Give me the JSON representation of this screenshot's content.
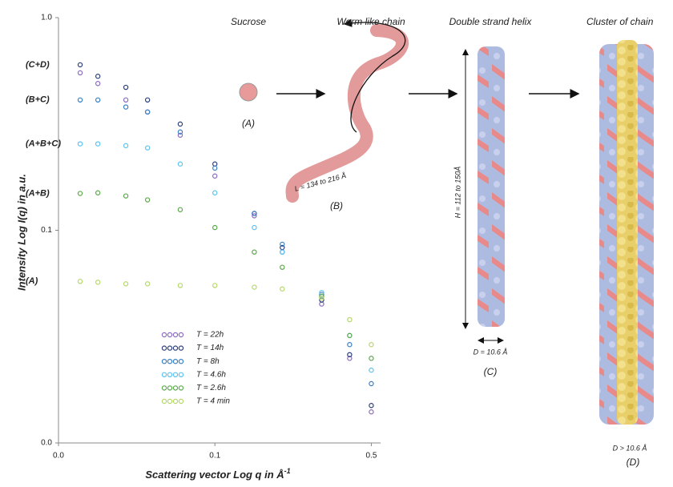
{
  "chart_data": {
    "type": "scatter",
    "x_label": "Scattering vector Log q in Å",
    "x_label_sup": "-1",
    "y_label": "Intensity Log I(q) in a.u.",
    "x": [
      0.025,
      0.03,
      0.04,
      0.05,
      0.07,
      0.1,
      0.15,
      0.2,
      0.3,
      0.4,
      0.5
    ],
    "xlim": [
      0.02,
      0.55
    ],
    "ylim": [
      0.01,
      1
    ],
    "xlog": true,
    "ylog": true,
    "xticks": [
      {
        "value": 0.02,
        "label": "0.0"
      },
      0.1,
      0.5
    ],
    "yticks": [
      {
        "value": 0.01,
        "label": "0.0"
      },
      0.1,
      {
        "value": 1,
        "label": "1.0"
      }
    ],
    "series": [
      {
        "name": "T = 22h",
        "color": "#8a6bbf",
        "values": [
          0.55,
          0.49,
          0.41,
          0.36,
          0.28,
          0.18,
          0.117,
          0.079,
          0.045,
          0.025,
          0.014
        ]
      },
      {
        "name": "T = 14h",
        "color": "#2a3f7a",
        "label": "(C+D)",
        "values": [
          0.6,
          0.53,
          0.47,
          0.41,
          0.316,
          0.205,
          0.12,
          0.083,
          0.047,
          0.026,
          0.015
        ]
      },
      {
        "name": "T = 8h",
        "color": "#3a7fc4",
        "label": "(B+C)",
        "values": [
          0.41,
          0.41,
          0.38,
          0.36,
          0.29,
          0.196,
          0.12,
          0.086,
          0.05,
          0.029,
          0.019
        ]
      },
      {
        "name": "T = 4.6h",
        "color": "#5cc3ef",
        "label": "(A+B+C)",
        "values": [
          0.255,
          0.255,
          0.25,
          0.244,
          0.205,
          0.15,
          0.103,
          0.079,
          0.051,
          0.032,
          0.022
        ]
      },
      {
        "name": "T = 2.6h",
        "color": "#5aa84a",
        "label": "(A+B)",
        "values": [
          0.149,
          0.15,
          0.145,
          0.139,
          0.125,
          0.103,
          0.079,
          0.067,
          0.049,
          0.032,
          0.025
        ]
      },
      {
        "name": "T = 4 min",
        "color": "#b5d86a",
        "label": "(A)",
        "values": [
          0.0575,
          0.057,
          0.056,
          0.056,
          0.055,
          0.055,
          0.054,
          0.053,
          0.048,
          0.038,
          0.029
        ]
      }
    ]
  },
  "diagram": {
    "stages": [
      "Sucrose",
      "Worm like chain",
      "Double strand helix",
      "Cluster of chain"
    ],
    "labels": [
      "(A)",
      "(B)",
      "(C)",
      "(D)"
    ],
    "length": "L = 134 to 216 Å",
    "height": "H = 112 to 150Å",
    "diameter": "D = 10.6 Å",
    "cluster_diameter": "D > 10.6 Å"
  }
}
